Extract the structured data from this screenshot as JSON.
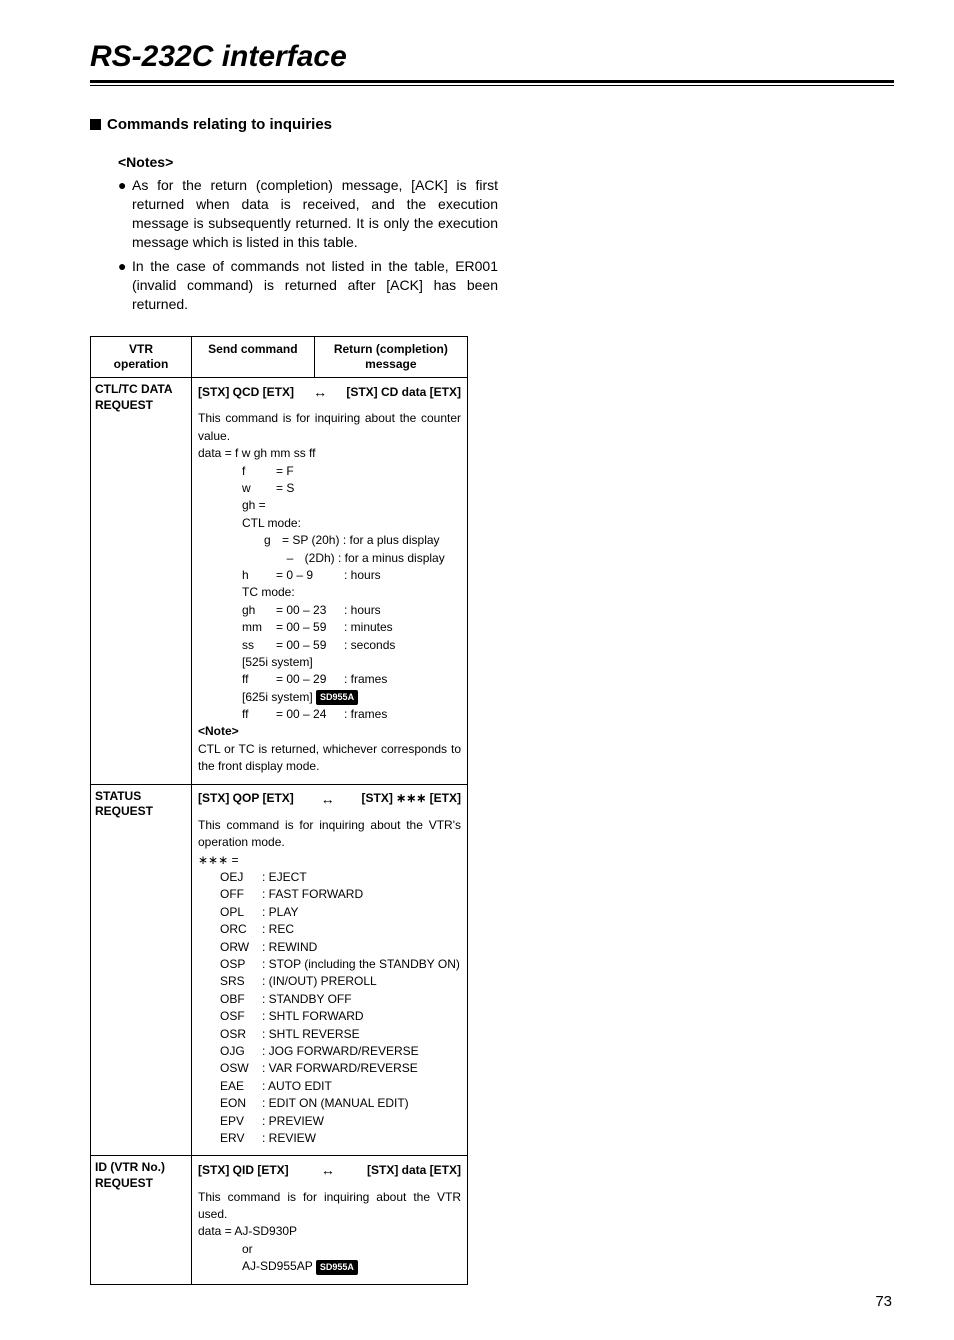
{
  "page": {
    "title": "RS-232C interface",
    "number": "73"
  },
  "section": {
    "heading": "Commands relating to inquiries"
  },
  "notes": {
    "title": "<Notes>",
    "items": [
      "As for the return (completion) message, [ACK] is first returned when data is received, and the execution message is subsequently returned. It is only the execution message which is listed in this table.",
      "In the case of commands not listed in the table, ER001 (invalid command) is returned after [ACK] has been returned."
    ]
  },
  "table": {
    "headers": {
      "op": "VTR\noperation",
      "send": "Send command",
      "ret": "Return (completion)\nmessage"
    },
    "rows": [
      {
        "op": "CTL/TC DATA REQUEST",
        "send": "[STX] QCD [ETX]",
        "ret": "[STX] CD data [ETX]",
        "desc": "This command is for inquiring about the counter value.",
        "data_line": "data = f w gh mm ss ff",
        "defs": {
          "f": "= F",
          "w": "= S",
          "gh_label": "gh =",
          "ctl_label": "CTL mode:",
          "g_plus": "= SP (20h) : for a plus display",
          "g_minus": "(2Dh) : for a minus display",
          "h_val": "= 0 – 9",
          "h_lbl": ": hours",
          "tc_label": "TC mode:",
          "gh_val": "= 00 – 23",
          "gh_lbl": ": hours",
          "mm_val": "= 00 – 59",
          "mm_lbl": ": minutes",
          "ss_val": "= 00 – 59",
          "ss_lbl": ": seconds",
          "sys525": "[525i system]",
          "ff525_val": "= 00 – 29",
          "ff525_lbl": ": frames",
          "sys625": "[625i system]",
          "badge625": "SD955A",
          "ff625_val": "= 00 – 24",
          "ff625_lbl": ": frames"
        },
        "note_label": "<Note>",
        "note_text": "CTL or TC is returned, whichever corresponds to the front display mode."
      },
      {
        "op": "STATUS REQUEST",
        "send": "[STX] QOP [ETX]",
        "ret": "[STX] ∗∗∗ [ETX]",
        "desc": "This command is for inquiring about the VTR's operation mode.",
        "stars": "∗∗∗ =",
        "codes": [
          [
            "OEJ",
            ": EJECT"
          ],
          [
            "OFF",
            ": FAST FORWARD"
          ],
          [
            "OPL",
            ": PLAY"
          ],
          [
            "ORC",
            ": REC"
          ],
          [
            "ORW",
            ": REWIND"
          ],
          [
            "OSP",
            ": STOP (including the STANDBY ON)"
          ],
          [
            "SRS",
            ": (IN/OUT) PREROLL"
          ],
          [
            "OBF",
            ": STANDBY OFF"
          ],
          [
            "OSF",
            ": SHTL FORWARD"
          ],
          [
            "OSR",
            ": SHTL REVERSE"
          ],
          [
            "OJG",
            ": JOG FORWARD/REVERSE"
          ],
          [
            "OSW",
            ": VAR FORWARD/REVERSE"
          ],
          [
            "EAE",
            ": AUTO EDIT"
          ],
          [
            "EON",
            ": EDIT ON (MANUAL EDIT)"
          ],
          [
            "EPV",
            ": PREVIEW"
          ],
          [
            "ERV",
            ": REVIEW"
          ]
        ]
      },
      {
        "op": "ID (VTR No.) REQUEST",
        "send": "[STX] QID [ETX]",
        "ret": "[STX] data [ETX]",
        "desc": "This command is for inquiring about the VTR used.",
        "data_line": "data = AJ-SD930P",
        "or": "or",
        "alt": "AJ-SD955AP",
        "alt_badge": "SD955A"
      }
    ]
  }
}
